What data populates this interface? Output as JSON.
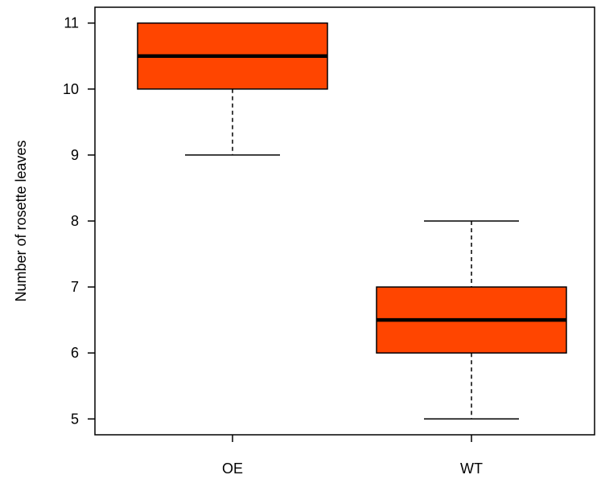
{
  "chart_data": {
    "type": "box",
    "title": "",
    "xlabel": "",
    "ylabel": "Number of rosette leaves",
    "ylim": [
      4.76,
      11.24
    ],
    "yticks": [
      5,
      6,
      7,
      8,
      9,
      10,
      11
    ],
    "ytick_labels": [
      "5",
      "6",
      "7",
      "8",
      "9",
      "10",
      "11"
    ],
    "categories": [
      "OE",
      "WT"
    ],
    "boxes": [
      {
        "category": "OE",
        "whisker_low": 9,
        "q1": 10,
        "median": 10.5,
        "q3": 11,
        "whisker_high": 11
      },
      {
        "category": "WT",
        "whisker_low": 5,
        "q1": 6,
        "median": 6.5,
        "q3": 7,
        "whisker_high": 8
      }
    ],
    "box_color": "#ff4500",
    "grid": false,
    "legend": "none"
  }
}
